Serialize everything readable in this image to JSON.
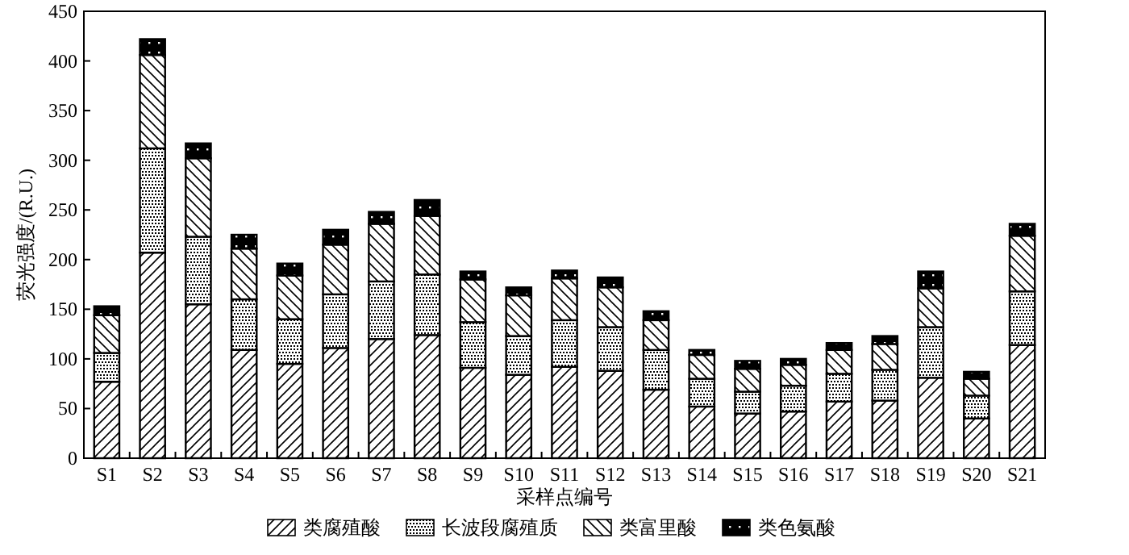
{
  "chart_data": {
    "type": "bar",
    "stacked": true,
    "xlabel": "采样点编号",
    "ylabel": "荧光强度/(R.U.)",
    "categories": [
      "S1",
      "S2",
      "S3",
      "S4",
      "S5",
      "S6",
      "S7",
      "S8",
      "S9",
      "S10",
      "S11",
      "S12",
      "S13",
      "S14",
      "S15",
      "S16",
      "S17",
      "S18",
      "S19",
      "S20",
      "S21"
    ],
    "series": [
      {
        "name": "类腐殖酸",
        "color": "#000000",
        "values": [
          77,
          207,
          155,
          109,
          95,
          111,
          120,
          124,
          91,
          84,
          92,
          88,
          69,
          52,
          45,
          47,
          57,
          58,
          81,
          40,
          114
        ]
      },
      {
        "name": "长波段腐殖质",
        "color": "#000000",
        "values": [
          29,
          105,
          68,
          51,
          45,
          54,
          58,
          61,
          46,
          39,
          47,
          44,
          40,
          28,
          22,
          26,
          28,
          31,
          51,
          23,
          54
        ]
      },
      {
        "name": "类富里酸",
        "color": "#000000",
        "values": [
          38,
          94,
          79,
          51,
          44,
          50,
          58,
          59,
          43,
          41,
          42,
          40,
          30,
          24,
          23,
          21,
          24,
          26,
          39,
          17,
          56
        ]
      },
      {
        "name": "类色氨酸",
        "color": "#000000",
        "values": [
          9,
          16,
          15,
          14,
          12,
          15,
          12,
          16,
          8,
          8,
          8,
          10,
          9,
          5,
          8,
          6,
          7,
          8,
          17,
          7,
          12
        ]
      }
    ],
    "ylim": [
      0,
      450
    ],
    "yticks": [
      0,
      50,
      100,
      150,
      200,
      250,
      300,
      350,
      400,
      450
    ],
    "grid": false,
    "legend": "bottom"
  }
}
